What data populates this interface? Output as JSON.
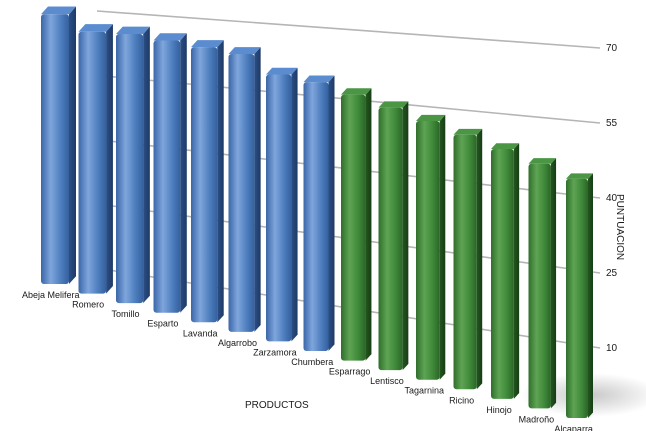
{
  "chart_data": {
    "type": "bar",
    "title": "",
    "xlabel": "PRODUCTOS",
    "ylabel": "PUNTUACION",
    "ylim": [
      0,
      70
    ],
    "yticks": [
      10,
      25,
      40,
      55,
      70
    ],
    "grid": true,
    "categories": [
      "Abeja Melifera",
      "Romero",
      "Tomillo",
      "Esparto",
      "Lavanda",
      "Algarrobo",
      "Zarzamora",
      "Chumbera",
      "Esparrago",
      "Lentisco",
      "Tagarnina",
      "Ricino",
      "Hinojo",
      "Madroño",
      "Alcaparra"
    ],
    "values": [
      71,
      67,
      67,
      66,
      65,
      64,
      60,
      59,
      57,
      55,
      53,
      51,
      49,
      47,
      45
    ],
    "colors": [
      "#4f7fbf",
      "#4f7fbf",
      "#4f7fbf",
      "#4f7fbf",
      "#4f7fbf",
      "#4f7fbf",
      "#4f7fbf",
      "#4f7fbf",
      "#3f8a3a",
      "#3f8a3a",
      "#3f8a3a",
      "#3f8a3a",
      "#3f8a3a",
      "#3f8a3a",
      "#3f8a3a"
    ]
  }
}
